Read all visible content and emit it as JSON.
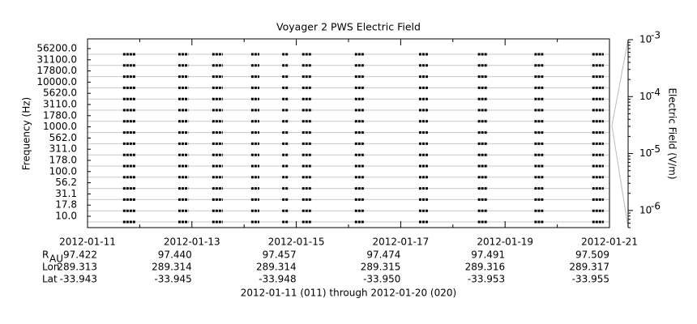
{
  "chart_data": {
    "type": "spectrogram",
    "title": "Voyager 2 PWS Electric Field",
    "ylabel": "Frequency (Hz)",
    "categories": [
      "56200.0",
      "31100.0",
      "17800.0",
      "10000.0",
      "5620.0",
      "3110.0",
      "1780.0",
      "1000.0",
      "562.0",
      "311.0",
      "178.0",
      "100.0",
      "56.2",
      "31.1",
      "17.8",
      "10.0"
    ],
    "xlim": [
      "2012-01-11",
      "2012-01-21"
    ],
    "xticks": [
      "2012-01-11",
      "2012-01-13",
      "2012-01-15",
      "2012-01-17",
      "2012-01-19",
      "2012-01-21"
    ],
    "color": "#000000",
    "grid": true,
    "bursts": [
      {
        "start": "2012-01-11 16:20",
        "end": "2012-01-11 22:05"
      },
      {
        "start": "2012-01-12 17:45",
        "end": "2012-01-12 22:20"
      },
      {
        "start": "2012-01-13 09:20",
        "end": "2012-01-13 14:10"
      },
      {
        "start": "2012-01-14 03:15",
        "end": "2012-01-14 07:00"
      },
      {
        "start": "2012-01-14 17:30",
        "end": "2012-01-14 20:30"
      },
      {
        "start": "2012-01-15 02:40",
        "end": "2012-01-15 07:10"
      },
      {
        "start": "2012-01-16 02:55",
        "end": "2012-01-16 07:25"
      },
      {
        "start": "2012-01-17 08:25",
        "end": "2012-01-17 12:30"
      },
      {
        "start": "2012-01-18 11:30",
        "end": "2012-01-18 16:00"
      },
      {
        "start": "2012-01-19 13:30",
        "end": "2012-01-19 17:35"
      },
      {
        "start": "2012-01-20 16:05",
        "end": "2012-01-20 21:20"
      }
    ],
    "y2label": "Electric Field (V/m)",
    "y2scale": "log",
    "y2lim": [
      5e-07,
      0.001
    ],
    "y2ticks": [
      {
        "value": 0.001,
        "label": "10",
        "exponent": "-3"
      },
      {
        "value": 0.0001,
        "label": "10",
        "exponent": "-4"
      },
      {
        "value": 1e-05,
        "label": "10",
        "exponent": "-5"
      },
      {
        "value": 1e-06,
        "label": "10",
        "exponent": "-6"
      }
    ],
    "ephemeris": [
      {
        "label": "R",
        "sub": "AU",
        "values": [
          "97.422",
          "97.440",
          "97.457",
          "97.474",
          "97.491",
          "97.509"
        ]
      },
      {
        "label": "Lon",
        "values": [
          "289.313",
          "289.314",
          "289.314",
          "289.315",
          "289.316",
          "289.317"
        ]
      },
      {
        "label": "Lat",
        "values": [
          "-33.943",
          "-33.945",
          "-33.948",
          "-33.950",
          "-33.953",
          "-33.955"
        ]
      }
    ],
    "footer": "2012-01-11 (011) through 2012-01-20 (020)"
  }
}
